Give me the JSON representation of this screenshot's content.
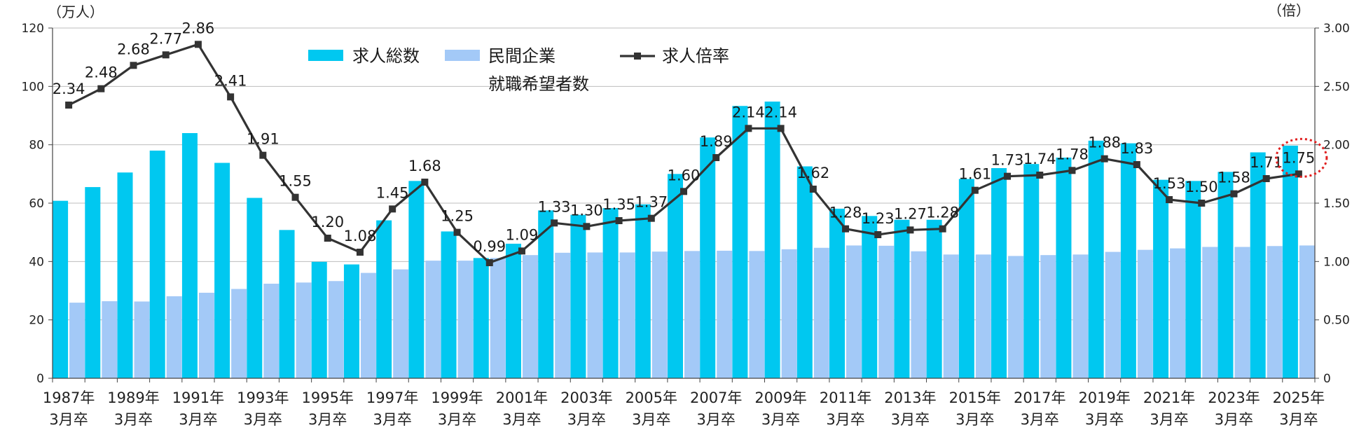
{
  "chart_data": {
    "type": "bar",
    "combo_line": true,
    "title": "",
    "y_left_unit": "（万人）",
    "y_right_unit": "（倍）",
    "y_left_range": [
      0,
      120
    ],
    "y_left_ticks": [
      0,
      20,
      40,
      60,
      80,
      100,
      120
    ],
    "y_right_range": [
      0,
      3.0
    ],
    "y_right_ticks": [
      "0",
      "0.50",
      "1.00",
      "1.50",
      "2.00",
      "2.50",
      "3.00"
    ],
    "grid": true,
    "years": [
      "1987",
      "1988",
      "1989",
      "1990",
      "1991",
      "1992",
      "1993",
      "1994",
      "1995",
      "1996",
      "1997",
      "1998",
      "1999",
      "2000",
      "2001",
      "2002",
      "2003",
      "2004",
      "2005",
      "2006",
      "2007",
      "2008",
      "2009",
      "2010",
      "2011",
      "2012",
      "2013",
      "2014",
      "2015",
      "2016",
      "2017",
      "2018",
      "2019",
      "2020",
      "2021",
      "2022",
      "2023",
      "2024",
      "2025"
    ],
    "x_tick_labels": [
      {
        "year": "1987年",
        "sub": "3月卒"
      },
      {
        "year": "1989年",
        "sub": "3月卒"
      },
      {
        "year": "1991年",
        "sub": "3月卒"
      },
      {
        "year": "1993年",
        "sub": "3月卒"
      },
      {
        "year": "1995年",
        "sub": "3月卒"
      },
      {
        "year": "1997年",
        "sub": "3月卒"
      },
      {
        "year": "1999年",
        "sub": "3月卒"
      },
      {
        "year": "2001年",
        "sub": "3月卒"
      },
      {
        "year": "2003年",
        "sub": "3月卒"
      },
      {
        "year": "2005年",
        "sub": "3月卒"
      },
      {
        "year": "2007年",
        "sub": "3月卒"
      },
      {
        "year": "2009年",
        "sub": "3月卒"
      },
      {
        "year": "2011年",
        "sub": "3月卒"
      },
      {
        "year": "2013年",
        "sub": "3月卒"
      },
      {
        "year": "2015年",
        "sub": "3月卒"
      },
      {
        "year": "2017年",
        "sub": "3月卒"
      },
      {
        "year": "2019年",
        "sub": "3月卒"
      },
      {
        "year": "2021年",
        "sub": "3月卒"
      },
      {
        "year": "2023年",
        "sub": "3月卒"
      },
      {
        "year": "2025年",
        "sub": "3月卒"
      }
    ],
    "series": [
      {
        "name": "求人総数",
        "kind": "bar",
        "axis": "left",
        "color": "#00c8f0",
        "values": [
          60.8,
          65.5,
          70.5,
          78.0,
          84.0,
          73.8,
          61.8,
          50.8,
          39.9,
          39.0,
          54.1,
          67.6,
          50.3,
          41.2,
          46.1,
          57.5,
          56.0,
          58.3,
          59.6,
          70.0,
          82.5,
          93.3,
          94.8,
          72.6,
          58.1,
          55.6,
          54.3,
          54.3,
          68.3,
          72.0,
          73.4,
          75.6,
          81.4,
          80.5,
          68.0,
          67.6,
          70.7,
          77.4,
          79.7
        ]
      },
      {
        "name": "民間企業就職希望者数",
        "legend_lines": [
          "民間企業",
          "就職希望者数"
        ],
        "kind": "bar",
        "axis": "left",
        "color": "#a3c9f7",
        "values": [
          25.9,
          26.4,
          26.3,
          28.1,
          29.3,
          30.6,
          32.4,
          32.8,
          33.3,
          36.1,
          37.3,
          40.3,
          40.3,
          41.2,
          42.2,
          43.0,
          43.1,
          43.1,
          43.4,
          43.6,
          43.7,
          43.6,
          44.2,
          44.7,
          45.5,
          45.4,
          43.5,
          42.4,
          42.4,
          41.9,
          42.2,
          42.4,
          43.3,
          44.0,
          44.5,
          45.0,
          45.0,
          45.3,
          45.5
        ]
      },
      {
        "name": "求人倍率",
        "kind": "line",
        "axis": "right",
        "color": "#333333",
        "values": [
          2.34,
          2.48,
          2.68,
          2.77,
          2.86,
          2.41,
          1.91,
          1.55,
          1.2,
          1.08,
          1.45,
          1.68,
          1.25,
          0.99,
          1.09,
          1.33,
          1.3,
          1.35,
          1.37,
          1.6,
          1.89,
          2.14,
          2.14,
          1.62,
          1.28,
          1.23,
          1.27,
          1.28,
          1.61,
          1.73,
          1.74,
          1.78,
          1.88,
          1.83,
          1.53,
          1.5,
          1.58,
          1.71,
          1.75
        ],
        "labels": [
          "2.34",
          "2.48",
          "2.68",
          "2.77",
          "2.86",
          "2.41",
          "1.91",
          "1.55",
          "1.20",
          "1.08",
          "1.45",
          "1.68",
          "1.25",
          "0.99",
          "1.09",
          "1.33",
          "1.30",
          "1.35",
          "1.37",
          "1.60",
          "1.89",
          "2.14",
          "2.14",
          "1.62",
          "1.28",
          "1.23",
          "1.27",
          "1.28",
          "1.61",
          "1.73",
          "1.74",
          "1.78",
          "1.88",
          "1.83",
          "1.53",
          "1.50",
          "1.58",
          "1.71",
          "1.75"
        ]
      }
    ],
    "highlight": {
      "year": "2025",
      "label": "1.75",
      "style": "red dotted circle"
    }
  }
}
